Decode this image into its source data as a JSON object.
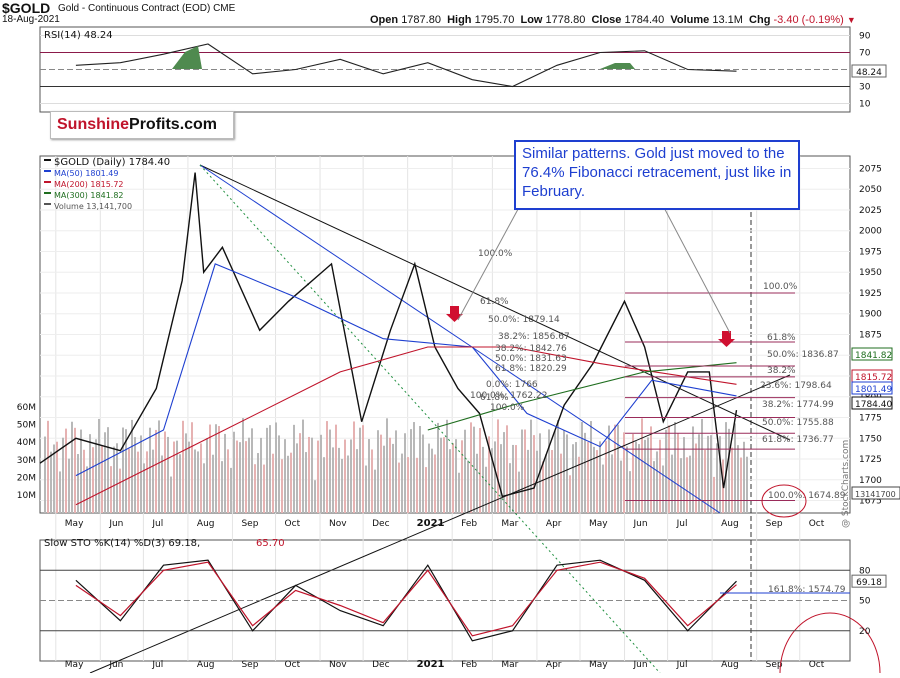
{
  "header": {
    "ticker": "$GOLD",
    "description": "Gold - Continuous Contract (EOD)",
    "exchange": "CME",
    "date": "18-Aug-2021",
    "open_label": "Open",
    "open": "1787.80",
    "high_label": "High",
    "high": "1795.70",
    "low_label": "Low",
    "low": "1778.80",
    "close_label": "Close",
    "close": "1784.40",
    "volume_label": "Volume",
    "volume": "13.1M",
    "chg_label": "Chg",
    "chg": "-3.40 (-0.19%)",
    "watermark": "@ StockCharts.com"
  },
  "logo": {
    "part1": "Sunshine",
    "part2": "Profits.com"
  },
  "callout": {
    "text": "Similar patterns. Gold just moved to the 76.4% Fibonacci retracement, just like in February."
  },
  "colors": {
    "price_up": "#111111",
    "price_down": "#c0142b",
    "ma50": "#1e3fd0",
    "ma200": "#c0142b",
    "ma300": "#1f6e1f",
    "fib": "#9a2b5a",
    "volume": "#b8b8b8",
    "volume_down": "#e6b2b2"
  },
  "chart_data": [
    {
      "type": "line",
      "title": "RSI(14) 48.24",
      "x_range": [
        "2020-04-20",
        "2021-11-05"
      ],
      "ylim": [
        0,
        100
      ],
      "y_ticks": [
        90,
        70,
        50,
        30,
        10
      ],
      "last_value": "48.24",
      "thresholds": [
        70,
        30
      ],
      "x": [
        "2020-05",
        "2020-06",
        "2020-07",
        "2020-08",
        "2020-09",
        "2020-10",
        "2020-11",
        "2020-12",
        "2021-01",
        "2021-02",
        "2021-03",
        "2021-04",
        "2021-05",
        "2021-06",
        "2021-07",
        "2021-08-18"
      ],
      "values": [
        55,
        58,
        68,
        80,
        45,
        50,
        62,
        45,
        58,
        38,
        30,
        55,
        70,
        72,
        50,
        48
      ]
    },
    {
      "type": "line",
      "title": "$GOLD (Daily) 1784.40",
      "x_ticks": [
        "May",
        "Jun",
        "Jul",
        "Aug",
        "Sep",
        "Oct",
        "Nov",
        "Dec",
        "2021",
        "Feb",
        "Mar",
        "Apr",
        "May",
        "Jun",
        "Jul",
        "Aug",
        "Sep",
        "Oct"
      ],
      "ylim": [
        1660,
        2090
      ],
      "y_ticks": [
        2075,
        2050,
        2025,
        2000,
        1975,
        1950,
        1925,
        1900,
        1875,
        1850,
        1825,
        1800,
        1775,
        1750,
        1725,
        1700,
        1675
      ],
      "volume_ticks": [
        "60M",
        "50M",
        "40M",
        "30M",
        "20M",
        "10M"
      ],
      "legend": [
        {
          "name": "$GOLD (Daily) 1784.40"
        },
        {
          "name": "MA(50) 1801.49"
        },
        {
          "name": "MA(200) 1815.72"
        },
        {
          "name": "MA(300) 1841.82"
        },
        {
          "name": "Volume 13,141,700"
        }
      ],
      "price_labels": {
        "ma300": "1841.82",
        "ma200": "1815.72",
        "ma50": "1801.49",
        "close": "1784.40",
        "volume": "13141700"
      },
      "series": [
        {
          "name": "$GOLD",
          "x": [
            "2020-04-20",
            "2020-05-15",
            "2020-06-15",
            "2020-07-10",
            "2020-07-28",
            "2020-08-06",
            "2020-08-12",
            "2020-08-25",
            "2020-09-20",
            "2020-10-10",
            "2020-11-09",
            "2020-11-30",
            "2020-12-20",
            "2021-01-06",
            "2021-01-20",
            "2021-02-05",
            "2021-02-20",
            "2021-03-08",
            "2021-03-30",
            "2021-04-20",
            "2021-05-10",
            "2021-06-01",
            "2021-06-15",
            "2021-06-28",
            "2021-07-15",
            "2021-07-30",
            "2021-08-09",
            "2021-08-18"
          ],
          "values": [
            1720,
            1750,
            1735,
            1810,
            1940,
            2070,
            1950,
            1980,
            1880,
            1915,
            1960,
            1770,
            1880,
            1960,
            1860,
            1810,
            1780,
            1680,
            1690,
            1790,
            1840,
            1915,
            1860,
            1770,
            1830,
            1830,
            1690,
            1784
          ]
        },
        {
          "name": "MA(50)",
          "x": [
            "2020-05",
            "2020-07",
            "2020-08-20",
            "2020-10",
            "2020-12",
            "2021-02",
            "2021-03-25",
            "2021-05",
            "2021-06-20",
            "2021-08-18"
          ],
          "values": [
            1705,
            1760,
            1960,
            1920,
            1870,
            1860,
            1780,
            1740,
            1820,
            1801
          ]
        },
        {
          "name": "MA(200)",
          "x": [
            "2020-05",
            "2020-08",
            "2020-11",
            "2021-01",
            "2021-03",
            "2021-05",
            "2021-08-18"
          ],
          "values": [
            1670,
            1750,
            1830,
            1860,
            1860,
            1840,
            1815
          ]
        },
        {
          "name": "MA(300)",
          "x": [
            "2021-01",
            "2021-03",
            "2021-06",
            "2021-08-18"
          ],
          "values": [
            1760,
            1790,
            1830,
            1841
          ]
        }
      ],
      "trendlines": [
        {
          "from": [
            "2020-08-06",
            2075
          ],
          "to": [
            "2021-08-18",
            1790
          ]
        },
        {
          "from": [
            "2020-08-06",
            2075
          ],
          "to": [
            "2021-08-15",
            1668
          ]
        },
        {
          "from": [
            "2020-06-01",
            1600
          ],
          "to": [
            "2021-08-18",
            1790
          ]
        }
      ],
      "fib_labels": [
        "100.0%",
        "61.8%",
        "50.0%: 1879.14",
        "38.2%: 1856.67",
        "38.2%: 1842.76",
        "50.0%: 1831.63",
        "61.8%: 1820.29",
        "61.8%",
        "100.0%",
        "100.0%: 1762.22",
        "0.0%: 1766",
        "100.0%",
        "61.8%",
        "50.0%: 1836.87",
        "38.2%",
        "23.6%: 1798.64",
        "38.2%: 1774.99",
        "50.0%: 1755.88",
        "61.8%: 1736.77",
        "100.0%: 1674.89"
      ],
      "fib_levels": [
        1925,
        1866,
        1837,
        1824,
        1799,
        1775,
        1756,
        1737,
        1675
      ]
    },
    {
      "type": "line",
      "title": "Slow STO %K(14) %D(3) 69.18, 65.70",
      "ylim": [
        0,
        100
      ],
      "y_ticks": [
        80,
        50,
        20
      ],
      "last_values": [
        "69.18",
        "65.70"
      ],
      "extra_labels": [
        "161.8%: 1574.79"
      ],
      "series": [
        {
          "name": "%K(14)",
          "x": [
            "2020-05",
            "2020-06",
            "2020-07",
            "2020-08",
            "2020-09",
            "2020-10",
            "2020-11",
            "2020-12",
            "2021-01",
            "2021-02",
            "2021-03",
            "2021-04",
            "2021-05",
            "2021-06",
            "2021-07",
            "2021-08-18"
          ],
          "values": [
            70,
            30,
            85,
            90,
            20,
            65,
            40,
            25,
            85,
            10,
            20,
            85,
            90,
            70,
            20,
            69.18
          ]
        },
        {
          "name": "%D(3)",
          "x": [
            "2020-05",
            "2020-06",
            "2020-07",
            "2020-08",
            "2020-09",
            "2020-10",
            "2020-11",
            "2020-12",
            "2021-01",
            "2021-02",
            "2021-03",
            "2021-04",
            "2021-05",
            "2021-06",
            "2021-07",
            "2021-08-18"
          ],
          "values": [
            65,
            35,
            80,
            88,
            25,
            60,
            45,
            28,
            80,
            15,
            25,
            80,
            88,
            72,
            25,
            65.7
          ]
        }
      ]
    }
  ],
  "labels": {
    "rsi_legend": "RSI(14) 48.24",
    "price_legend": "$GOLD (Daily) 1784.40",
    "ma50_legend": "MA(50) 1801.49",
    "ma200_legend": "MA(200) 1815.72",
    "ma300_legend": "MA(300) 1841.82",
    "vol_legend": "Volume 13,141,700",
    "sto_legend_prefix": "Slow STO %K(14) %D(3)",
    "sto_k": "69.18",
    "sto_d": "65.70",
    "sto_fib": "161.8%: 1574.79",
    "rsi_tag": "48.24",
    "sto_tag": "69.18",
    "close_tag": "1784.40",
    "ma50_tag": "1801.49",
    "ma200_tag": "1815.72",
    "ma300_tag": "1841.82",
    "vol_tag": "13141700"
  }
}
